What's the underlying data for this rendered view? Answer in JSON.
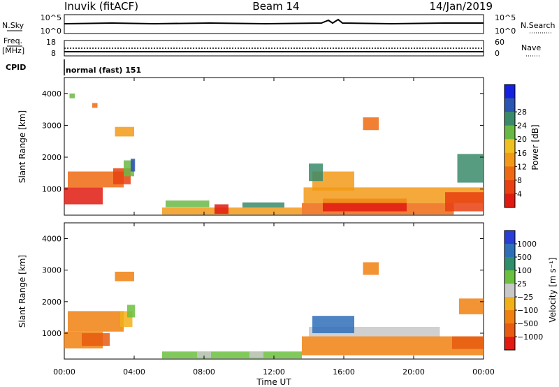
{
  "header": {
    "station": "Inuvik (fitACF)",
    "beam": "Beam 14",
    "date": "14/Jan/2019"
  },
  "panels": {
    "nsky": {
      "left_label": "N.Sky",
      "left_ticks": [
        "10^5",
        "10^0"
      ],
      "right_ticks": [
        "10^5",
        "10^0"
      ],
      "right_label": "N.Search"
    },
    "freq": {
      "left_label_1": "Freq.",
      "left_label_2": "[MHz]",
      "left_ticks": [
        "18",
        "8"
      ],
      "right_ticks": [
        "60",
        "0"
      ],
      "right_label": "Nave"
    },
    "cpid": {
      "label": "CPID",
      "text": "normal (fast) 151"
    }
  },
  "axes": {
    "y_label": "Slant Range [km]",
    "y_ticks": [
      "1000",
      "2000",
      "3000",
      "4000"
    ],
    "x_ticks": [
      "00:00",
      "04:00",
      "08:00",
      "12:00",
      "16:00",
      "20:00",
      "00:00"
    ],
    "x_label": "Time UT"
  },
  "colorbars": {
    "power": {
      "label": "Power [dB]",
      "ticks": [
        "4",
        "8",
        "12",
        "16",
        "20",
        "24",
        "28"
      ],
      "colors": [
        "#1520e0",
        "#2a55b0",
        "#3a8a6a",
        "#6ab844",
        "#f0c020",
        "#f29a18",
        "#ee6a12",
        "#e84010",
        "#e01a10"
      ]
    },
    "velocity": {
      "label": "Velocity [m s⁻¹]",
      "ticks": [
        "1000",
        "500",
        "100",
        "25",
        "−25",
        "−100",
        "−500",
        "−1000"
      ],
      "colors": [
        "#2a3dd6",
        "#2f6fb8",
        "#2e8f6a",
        "#6cc040",
        "#c8c8c8",
        "#f2b018",
        "#f08010",
        "#e85a10",
        "#e21a12"
      ]
    }
  },
  "chart_data": [
    {
      "type": "line",
      "title": "N.Sky / N.Search",
      "x": [
        "00:00",
        "04:00",
        "08:00",
        "12:00",
        "16:00",
        "20:00",
        "00:00"
      ],
      "x_range_hours": [
        0,
        24
      ],
      "series": [
        {
          "name": "N.Sky",
          "style": "solid",
          "approx_value": "~10^4"
        },
        {
          "name": "N.Search",
          "style": "dotted",
          "approx_value": "~10^4"
        }
      ]
    },
    {
      "type": "line",
      "title": "Freq. / Nave",
      "x_range_hours": [
        0,
        24
      ],
      "series": [
        {
          "name": "Freq. [MHz]",
          "style": "solid",
          "approx_value": 10
        },
        {
          "name": "Nave",
          "style": "dotted",
          "approx_value": 25
        }
      ]
    },
    {
      "type": "heatmap",
      "title": "Power [dB]",
      "x_range_hours": [
        0,
        24
      ],
      "y_range_km": [
        180,
        4500
      ],
      "color_range": [
        0,
        30
      ],
      "blocks": [
        {
          "t0": 0.0,
          "t1": 2.2,
          "r0": 520,
          "r1": 1050,
          "c": "#e01a10"
        },
        {
          "t0": 0.2,
          "t1": 3.4,
          "r0": 1050,
          "r1": 1550,
          "c": "#ee6a12"
        },
        {
          "t0": 2.8,
          "t1": 3.8,
          "r0": 1150,
          "r1": 1650,
          "c": "#e84010"
        },
        {
          "t0": 3.4,
          "t1": 4.0,
          "r0": 1400,
          "r1": 1900,
          "c": "#6ab844"
        },
        {
          "t0": 3.8,
          "t1": 4.05,
          "r0": 1550,
          "r1": 1950,
          "c": "#2a55b0"
        },
        {
          "t0": 2.9,
          "t1": 4.0,
          "r0": 2650,
          "r1": 2950,
          "c": "#f29a18"
        },
        {
          "t0": 1.6,
          "t1": 1.9,
          "r0": 3550,
          "r1": 3700,
          "c": "#ee6a12"
        },
        {
          "t0": 0.3,
          "t1": 0.6,
          "r0": 3850,
          "r1": 4000,
          "c": "#6ab844"
        },
        {
          "t0": 5.6,
          "t1": 13.6,
          "r0": 200,
          "r1": 420,
          "c": "#f29a18"
        },
        {
          "t0": 8.6,
          "t1": 9.4,
          "r0": 220,
          "r1": 520,
          "c": "#e01a10"
        },
        {
          "t0": 5.8,
          "t1": 8.3,
          "r0": 430,
          "r1": 640,
          "c": "#6ab844"
        },
        {
          "t0": 10.2,
          "t1": 12.6,
          "r0": 420,
          "r1": 580,
          "c": "#3a8a6a"
        },
        {
          "t0": 13.6,
          "t1": 22.3,
          "r0": 200,
          "r1": 560,
          "c": "#ee6a12"
        },
        {
          "t0": 14.8,
          "t1": 19.6,
          "r0": 300,
          "r1": 700,
          "c": "#e01a10"
        },
        {
          "t0": 13.7,
          "t1": 24.0,
          "r0": 560,
          "r1": 1050,
          "c": "#f29a18"
        },
        {
          "t0": 14.2,
          "t1": 16.6,
          "r0": 950,
          "r1": 1550,
          "c": "#f29a18"
        },
        {
          "t0": 14.0,
          "t1": 14.8,
          "r0": 1250,
          "r1": 1800,
          "c": "#3a8a6a"
        },
        {
          "t0": 21.8,
          "t1": 24.0,
          "r0": 300,
          "r1": 900,
          "c": "#e84010"
        },
        {
          "t0": 22.5,
          "t1": 24.0,
          "r0": 1200,
          "r1": 2100,
          "c": "#3a8a6a"
        },
        {
          "t0": 17.1,
          "t1": 18.0,
          "r0": 2850,
          "r1": 3250,
          "c": "#ee6a12"
        }
      ]
    },
    {
      "type": "heatmap",
      "title": "Velocity [m s⁻¹]",
      "x_range_hours": [
        0,
        24
      ],
      "y_range_km": [
        180,
        4500
      ],
      "color_range": [
        -1000,
        1000
      ],
      "blocks": [
        {
          "t0": 0.0,
          "t1": 2.2,
          "r0": 520,
          "r1": 1050,
          "c": "#f08010"
        },
        {
          "t0": 0.2,
          "t1": 3.4,
          "r0": 1050,
          "r1": 1700,
          "c": "#f08010"
        },
        {
          "t0": 1.0,
          "t1": 2.6,
          "r0": 600,
          "r1": 1000,
          "c": "#e85a10"
        },
        {
          "t0": 3.2,
          "t1": 3.9,
          "r0": 1200,
          "r1": 1700,
          "c": "#f2b018"
        },
        {
          "t0": 3.6,
          "t1": 4.05,
          "r0": 1500,
          "r1": 1900,
          "c": "#6cc040"
        },
        {
          "t0": 2.9,
          "t1": 4.0,
          "r0": 2650,
          "r1": 2950,
          "c": "#f08010"
        },
        {
          "t0": 5.6,
          "t1": 13.6,
          "r0": 200,
          "r1": 420,
          "c": "#6cc040"
        },
        {
          "t0": 7.6,
          "t1": 8.4,
          "r0": 220,
          "r1": 420,
          "c": "#c8c8c8"
        },
        {
          "t0": 10.6,
          "t1": 11.4,
          "r0": 220,
          "r1": 420,
          "c": "#c8c8c8"
        },
        {
          "t0": 13.6,
          "t1": 24.0,
          "r0": 300,
          "r1": 900,
          "c": "#f08010"
        },
        {
          "t0": 14.0,
          "t1": 21.5,
          "r0": 900,
          "r1": 1200,
          "c": "#c8c8c8"
        },
        {
          "t0": 14.2,
          "t1": 16.6,
          "r0": 1000,
          "r1": 1550,
          "c": "#2f6fb8"
        },
        {
          "t0": 22.2,
          "t1": 24.0,
          "r0": 500,
          "r1": 900,
          "c": "#e85a10"
        },
        {
          "t0": 22.6,
          "t1": 24.0,
          "r0": 1600,
          "r1": 2100,
          "c": "#f08010"
        },
        {
          "t0": 17.1,
          "t1": 18.0,
          "r0": 2850,
          "r1": 3250,
          "c": "#f08010"
        }
      ]
    }
  ]
}
